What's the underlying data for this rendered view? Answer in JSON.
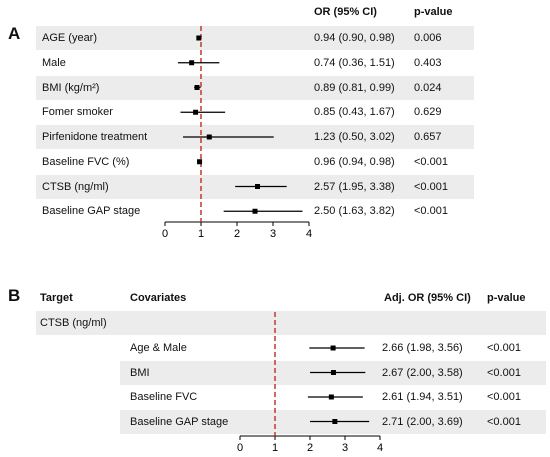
{
  "panel_a": {
    "label": "A",
    "headers": {
      "or": "OR (95% CI)",
      "p": "p-value"
    },
    "rows": [
      {
        "label": "AGE (year)",
        "or_text": "0.94 (0.90, 0.98)",
        "p_text": "0.006"
      },
      {
        "label": "Male",
        "or_text": "0.74 (0.36, 1.51)",
        "p_text": "0.403"
      },
      {
        "label": "BMI (kg/m²)",
        "or_text": "0.89 (0.81, 0.99)",
        "p_text": "0.024"
      },
      {
        "label": "Fomer smoker",
        "or_text": "0.85 (0.43, 1.67)",
        "p_text": "0.629"
      },
      {
        "label": "Pirfenidone treatment",
        "or_text": "1.23 (0.50, 3.02)",
        "p_text": "0.657"
      },
      {
        "label": "Baseline FVC (%)",
        "or_text": "0.96 (0.94, 0.98)",
        "p_text": "<0.001"
      },
      {
        "label": "CTSB (ng/ml)",
        "or_text": "2.57 (1.95, 3.38)",
        "p_text": "<0.001"
      },
      {
        "label": "Baseline GAP stage",
        "or_text": "2.50 (1.63, 3.82)",
        "p_text": "<0.001"
      }
    ]
  },
  "panel_b": {
    "label": "B",
    "headers": {
      "target": "Target",
      "cov": "Covariates",
      "or": "Adj. OR (95% CI)",
      "p": "p-value"
    },
    "target_label": "CTSB (ng/ml)",
    "rows": [
      {
        "label": "Age & Male",
        "or_text": "2.66 (1.98, 3.56)",
        "p_text": "<0.001"
      },
      {
        "label": "BMI",
        "or_text": "2.67 (2.00, 3.58)",
        "p_text": "<0.001"
      },
      {
        "label": "Baseline FVC",
        "or_text": "2.61 (1.94, 3.51)",
        "p_text": "<0.001"
      },
      {
        "label": "Baseline GAP stage",
        "or_text": "2.71 (2.00, 3.69)",
        "p_text": "<0.001"
      }
    ]
  },
  "colors": {
    "stripe": "#ececec",
    "ref_line": "#c0392b",
    "mark": "#000000"
  },
  "chart_data": [
    {
      "type": "forest",
      "xlim": [
        0,
        4
      ],
      "ticks": [
        "0",
        "1",
        "2",
        "3",
        "4"
      ],
      "reference": 1,
      "categories": [
        "AGE (year)",
        "Male",
        "BMI (kg/m²)",
        "Fomer smoker",
        "Pirfenidone treatment",
        "Baseline FVC (%)",
        "CTSB (ng/ml)",
        "Baseline GAP stage"
      ],
      "values": [
        0.94,
        0.74,
        0.89,
        0.85,
        1.23,
        0.96,
        2.57,
        2.5
      ],
      "lower": [
        0.9,
        0.36,
        0.81,
        0.43,
        0.5,
        0.94,
        1.95,
        1.63
      ],
      "upper": [
        0.98,
        1.51,
        0.99,
        1.67,
        3.02,
        0.98,
        3.38,
        3.82
      ]
    },
    {
      "type": "forest",
      "xlim": [
        0,
        4
      ],
      "ticks": [
        "0",
        "1",
        "2",
        "3",
        "4"
      ],
      "reference": 1,
      "categories": [
        "Age & Male",
        "BMI",
        "Baseline FVC",
        "Baseline GAP stage"
      ],
      "values": [
        2.66,
        2.67,
        2.61,
        2.71
      ],
      "lower": [
        1.98,
        2.0,
        1.94,
        2.0
      ],
      "upper": [
        3.56,
        3.58,
        3.51,
        3.69
      ]
    }
  ]
}
